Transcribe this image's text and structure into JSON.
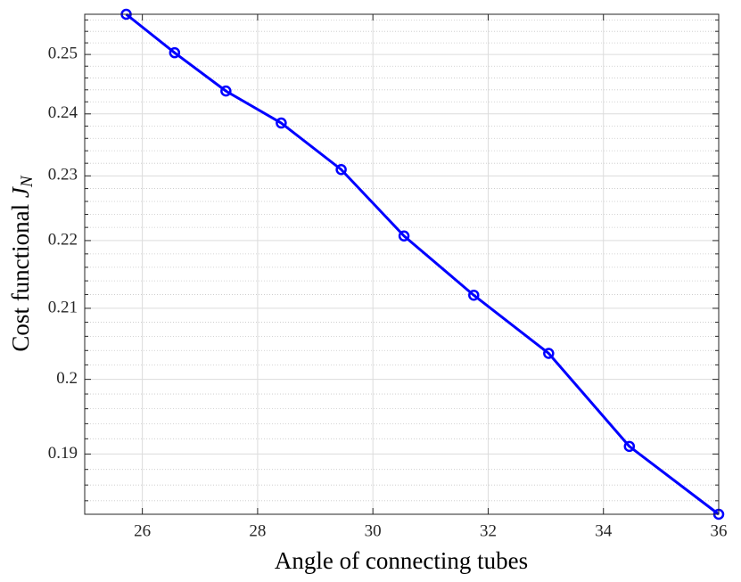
{
  "chart_data": {
    "type": "line",
    "xlabel": "Angle of connecting tubes",
    "ylabel": {
      "text": "Cost functional",
      "symbol": "J",
      "subscript": "N"
    },
    "x": [
      25.72,
      26.56,
      27.45,
      28.41,
      29.45,
      30.54,
      31.75,
      33.05,
      34.45,
      36.0
    ],
    "series": [
      {
        "name": "J_N",
        "color": "#0000ff",
        "values": [
          0.257,
          0.2503,
          0.2438,
          0.2385,
          0.231,
          0.2207,
          0.2119,
          0.2036,
          0.191,
          0.1823
        ]
      }
    ],
    "xlim": [
      25,
      36
    ],
    "xticks": [
      26,
      28,
      30,
      32,
      34,
      36
    ],
    "ylim": [
      0.1823,
      0.257
    ],
    "yscale": "log",
    "yticks": [
      0.19,
      0.2,
      0.21,
      0.22,
      0.23,
      0.24,
      0.25
    ],
    "yminorticks": [
      0.184,
      0.186,
      0.188,
      0.192,
      0.194,
      0.196,
      0.198,
      0.202,
      0.204,
      0.206,
      0.208,
      0.212,
      0.214,
      0.216,
      0.218,
      0.222,
      0.224,
      0.226,
      0.228,
      0.232,
      0.234,
      0.236,
      0.238,
      0.242,
      0.244,
      0.246,
      0.248,
      0.252,
      0.254,
      0.256
    ],
    "grid": true
  }
}
